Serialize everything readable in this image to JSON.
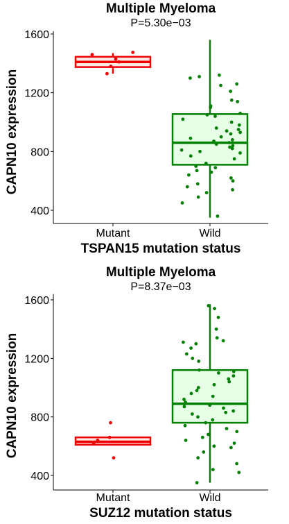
{
  "chart_data": [
    {
      "type": "box",
      "title": "Multiple Myeloma",
      "subtitle": "P=5.30e−03",
      "xlabel": "TSPAN15 mutation status",
      "ylabel": "CAPN10 expression",
      "categories": [
        "Mutant",
        "Wild"
      ],
      "yticks": [
        400,
        800,
        1200,
        1600
      ],
      "ylim": [
        330,
        1600
      ],
      "grid": false,
      "colors": {
        "Mutant": "#ee0000",
        "Wild": "#008000",
        "Mutant_fill": "#ffe8e8",
        "Wild_fill": "#e6ffe6"
      },
      "boxes": [
        {
          "category": "Mutant",
          "min": 1330,
          "q1": 1375,
          "median": 1410,
          "q3": 1445,
          "max": 1470
        },
        {
          "category": "Wild",
          "min": 350,
          "q1": 710,
          "median": 860,
          "q3": 1055,
          "max": 1560
        }
      ],
      "points": [
        {
          "category": "Mutant",
          "values": [
            1475,
            1460,
            1430,
            1330,
            1380,
            1410
          ]
        },
        {
          "category": "Wild",
          "values": [
            1320,
            1310,
            1300,
            1260,
            1250,
            1210,
            1150,
            1140,
            1110,
            1100,
            1060,
            1050,
            1040,
            1020,
            1000,
            980,
            960,
            950,
            940,
            930,
            920,
            900,
            890,
            880,
            870,
            860,
            850,
            840,
            830,
            820,
            810,
            800,
            790,
            770,
            750,
            720,
            700,
            690,
            670,
            660,
            640,
            620,
            600,
            580,
            560,
            540,
            520,
            490,
            450,
            360
          ]
        }
      ]
    },
    {
      "type": "box",
      "title": "Multiple Myeloma",
      "subtitle": "P=8.37e−03",
      "xlabel": "SUZ12 mutation status",
      "ylabel": "CAPN10 expression",
      "categories": [
        "Mutant",
        "Wild"
      ],
      "yticks": [
        400,
        800,
        1200,
        1600
      ],
      "ylim": [
        330,
        1620
      ],
      "grid": false,
      "colors": {
        "Mutant": "#ee0000",
        "Wild": "#008000",
        "Mutant_fill": "#ffe8e8",
        "Wild_fill": "#e6ffe6"
      },
      "boxes": [
        {
          "category": "Mutant",
          "min": 610,
          "q1": 610,
          "median": 630,
          "q3": 660,
          "max": 660
        },
        {
          "category": "Wild",
          "min": 350,
          "q1": 760,
          "median": 890,
          "q3": 1120,
          "max": 1570
        }
      ],
      "points": [
        {
          "category": "Mutant",
          "values": [
            760,
            660,
            640,
            620,
            520
          ]
        },
        {
          "category": "Wild",
          "values": [
            1560,
            1540,
            1480,
            1400,
            1340,
            1320,
            1310,
            1300,
            1270,
            1230,
            1200,
            1180,
            1120,
            1110,
            1100,
            1080,
            1060,
            1040,
            1020,
            1000,
            980,
            960,
            940,
            920,
            900,
            880,
            870,
            860,
            840,
            830,
            820,
            800,
            780,
            760,
            740,
            720,
            700,
            680,
            660,
            640,
            620,
            600,
            590,
            560,
            520,
            480,
            440,
            420,
            350
          ]
        }
      ]
    }
  ]
}
